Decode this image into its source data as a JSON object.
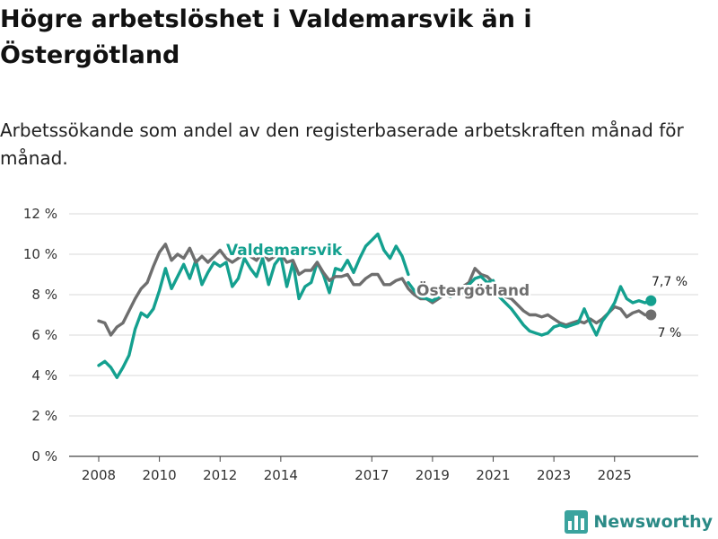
{
  "title": "Högre arbetslöshet i Valdemarsvik än i Östergötland",
  "subtitle": "Arbetssökande som andel av den registerbaserade arbetskraften månad för månad.",
  "brand": {
    "name": "Newsworthy",
    "color": "#2a8a86",
    "icon": "bar-chart-logo-icon"
  },
  "chart_data": {
    "type": "line",
    "title": "Högre arbetslöshet i Valdemarsvik än i Östergötland",
    "xlabel": "",
    "ylabel": "",
    "ylim": [
      0,
      12
    ],
    "xlim": [
      2008,
      2026.9
    ],
    "grid": true,
    "yticks": [
      0,
      2,
      4,
      6,
      8,
      10,
      12
    ],
    "ytick_labels": [
      "0 %",
      "2 %",
      "4 %",
      "6 %",
      "8 %",
      "10 %",
      "12 %"
    ],
    "xticks": [
      2008,
      2010,
      2012,
      2014,
      2017,
      2019,
      2021,
      2023,
      2025
    ],
    "xtick_labels": [
      "2008",
      "2010",
      "2012",
      "2014",
      "2017",
      "2019",
      "2021",
      "2023",
      "2025"
    ],
    "series": [
      {
        "name": "Valdemarsvik",
        "color": "#14a08f",
        "end_label": "7,7 %",
        "points": [
          [
            2008.0,
            4.5
          ],
          [
            2008.2,
            4.7
          ],
          [
            2008.4,
            4.4
          ],
          [
            2008.6,
            3.9
          ],
          [
            2008.8,
            4.4
          ],
          [
            2009.0,
            5.0
          ],
          [
            2009.2,
            6.3
          ],
          [
            2009.4,
            7.1
          ],
          [
            2009.6,
            6.9
          ],
          [
            2009.8,
            7.3
          ],
          [
            2010.0,
            8.2
          ],
          [
            2010.2,
            9.3
          ],
          [
            2010.4,
            8.3
          ],
          [
            2010.6,
            8.9
          ],
          [
            2010.8,
            9.5
          ],
          [
            2011.0,
            8.8
          ],
          [
            2011.2,
            9.7
          ],
          [
            2011.4,
            8.5
          ],
          [
            2011.6,
            9.1
          ],
          [
            2011.8,
            9.6
          ],
          [
            2012.0,
            9.4
          ],
          [
            2012.2,
            9.6
          ],
          [
            2012.4,
            8.4
          ],
          [
            2012.6,
            8.8
          ],
          [
            2012.8,
            9.8
          ],
          [
            2013.0,
            9.3
          ],
          [
            2013.2,
            8.9
          ],
          [
            2013.4,
            9.8
          ],
          [
            2013.6,
            8.5
          ],
          [
            2013.8,
            9.5
          ],
          [
            2014.0,
            9.9
          ],
          [
            2014.2,
            8.4
          ],
          [
            2014.4,
            9.6
          ],
          [
            2014.6,
            7.8
          ],
          [
            2014.8,
            8.4
          ],
          [
            2015.0,
            8.6
          ],
          [
            2015.2,
            9.6
          ],
          [
            2015.4,
            9.0
          ],
          [
            2015.6,
            8.1
          ],
          [
            2015.8,
            9.3
          ],
          [
            2016.0,
            9.2
          ],
          [
            2016.2,
            9.7
          ],
          [
            2016.4,
            9.1
          ],
          [
            2016.6,
            9.8
          ],
          [
            2016.8,
            10.4
          ],
          [
            2017.0,
            10.7
          ],
          [
            2017.2,
            11.0
          ],
          [
            2017.4,
            10.2
          ],
          [
            2017.6,
            9.8
          ],
          [
            2017.8,
            10.4
          ],
          [
            2018.0,
            9.9
          ],
          [
            2018.2,
            9.0
          ]
        ]
      },
      {
        "name": "Östergötland",
        "color": "#6e6e6e",
        "end_label": "7 %",
        "points": [
          [
            2008.0,
            6.7
          ],
          [
            2008.2,
            6.6
          ],
          [
            2008.4,
            6.0
          ],
          [
            2008.6,
            6.4
          ],
          [
            2008.8,
            6.6
          ],
          [
            2009.0,
            7.2
          ],
          [
            2009.2,
            7.8
          ],
          [
            2009.4,
            8.3
          ],
          [
            2009.6,
            8.6
          ],
          [
            2009.8,
            9.4
          ],
          [
            2010.0,
            10.1
          ],
          [
            2010.2,
            10.5
          ],
          [
            2010.4,
            9.7
          ],
          [
            2010.6,
            10.0
          ],
          [
            2010.8,
            9.8
          ],
          [
            2011.0,
            10.3
          ],
          [
            2011.2,
            9.6
          ],
          [
            2011.4,
            9.9
          ],
          [
            2011.6,
            9.6
          ],
          [
            2011.8,
            9.9
          ],
          [
            2012.0,
            10.2
          ],
          [
            2012.2,
            9.8
          ],
          [
            2012.4,
            9.6
          ],
          [
            2012.6,
            9.8
          ],
          [
            2012.8,
            10.0
          ],
          [
            2013.0,
            9.9
          ],
          [
            2013.2,
            9.7
          ],
          [
            2013.4,
            10.1
          ],
          [
            2013.6,
            9.7
          ],
          [
            2013.8,
            9.9
          ],
          [
            2014.0,
            10.0
          ],
          [
            2014.2,
            9.6
          ],
          [
            2014.4,
            9.7
          ],
          [
            2014.6,
            9.0
          ],
          [
            2014.8,
            9.2
          ],
          [
            2015.0,
            9.2
          ],
          [
            2015.2,
            9.6
          ],
          [
            2015.4,
            9.1
          ],
          [
            2015.6,
            8.7
          ],
          [
            2015.8,
            8.9
          ],
          [
            2016.0,
            8.9
          ],
          [
            2016.2,
            9.0
          ],
          [
            2016.4,
            8.5
          ],
          [
            2016.6,
            8.5
          ],
          [
            2016.8,
            8.8
          ],
          [
            2017.0,
            9.0
          ],
          [
            2017.2,
            9.0
          ],
          [
            2017.4,
            8.5
          ],
          [
            2017.6,
            8.5
          ],
          [
            2017.8,
            8.7
          ],
          [
            2018.0,
            8.8
          ],
          [
            2018.2,
            8.3
          ],
          [
            2018.4,
            8.0
          ],
          [
            2018.6,
            7.8
          ],
          [
            2018.8,
            7.8
          ],
          [
            2019.0,
            7.6
          ],
          [
            2019.2,
            7.8
          ],
          [
            2019.4,
            8.0
          ],
          [
            2019.6,
            7.9
          ],
          [
            2019.8,
            8.2
          ],
          [
            2020.0,
            8.4
          ],
          [
            2020.2,
            8.6
          ],
          [
            2020.4,
            9.3
          ],
          [
            2020.6,
            9.0
          ],
          [
            2020.8,
            8.9
          ],
          [
            2021.0,
            8.6
          ],
          [
            2021.2,
            8.2
          ],
          [
            2021.4,
            7.9
          ],
          [
            2021.6,
            7.8
          ],
          [
            2021.8,
            7.5
          ],
          [
            2022.0,
            7.2
          ],
          [
            2022.2,
            7.0
          ],
          [
            2022.4,
            7.0
          ],
          [
            2022.6,
            6.9
          ],
          [
            2022.8,
            7.0
          ],
          [
            2023.0,
            6.8
          ],
          [
            2023.2,
            6.6
          ],
          [
            2023.4,
            6.5
          ],
          [
            2023.6,
            6.6
          ],
          [
            2023.8,
            6.7
          ],
          [
            2024.0,
            6.6
          ],
          [
            2024.2,
            6.8
          ],
          [
            2024.4,
            6.6
          ],
          [
            2024.6,
            6.8
          ],
          [
            2024.8,
            7.1
          ],
          [
            2025.0,
            7.4
          ],
          [
            2025.2,
            7.3
          ],
          [
            2025.4,
            6.9
          ],
          [
            2025.6,
            7.1
          ],
          [
            2025.8,
            7.2
          ],
          [
            2026.0,
            7.0
          ],
          [
            2026.2,
            7.0
          ]
        ]
      },
      {
        "name": "Valdemarsvik",
        "color": "#14a08f",
        "points": [
          [
            2018.2,
            8.6
          ],
          [
            2018.4,
            8.2
          ],
          [
            2018.6,
            7.9
          ],
          [
            2018.8,
            7.8
          ],
          [
            2019.0,
            7.7
          ],
          [
            2019.2,
            7.9
          ],
          [
            2019.4,
            8.1
          ],
          [
            2019.6,
            7.9
          ],
          [
            2019.8,
            8.3
          ],
          [
            2020.0,
            8.1
          ],
          [
            2020.2,
            8.5
          ],
          [
            2020.4,
            8.8
          ],
          [
            2020.6,
            8.9
          ],
          [
            2020.8,
            8.6
          ],
          [
            2021.0,
            8.7
          ],
          [
            2021.2,
            7.9
          ],
          [
            2021.4,
            7.6
          ],
          [
            2021.6,
            7.3
          ],
          [
            2021.8,
            6.9
          ],
          [
            2022.0,
            6.5
          ],
          [
            2022.2,
            6.2
          ],
          [
            2022.4,
            6.1
          ],
          [
            2022.6,
            6.0
          ],
          [
            2022.8,
            6.1
          ],
          [
            2023.0,
            6.4
          ],
          [
            2023.2,
            6.5
          ],
          [
            2023.4,
            6.4
          ],
          [
            2023.6,
            6.5
          ],
          [
            2023.8,
            6.6
          ],
          [
            2024.0,
            7.3
          ],
          [
            2024.2,
            6.6
          ],
          [
            2024.4,
            6.0
          ],
          [
            2024.6,
            6.7
          ],
          [
            2024.8,
            7.1
          ],
          [
            2025.0,
            7.6
          ],
          [
            2025.2,
            8.4
          ],
          [
            2025.4,
            7.8
          ],
          [
            2025.6,
            7.6
          ],
          [
            2025.8,
            7.7
          ],
          [
            2026.0,
            7.6
          ],
          [
            2026.2,
            7.7
          ]
        ]
      }
    ],
    "annotations": [
      {
        "text": "Valdemarsvik",
        "series": "Valdemarsvik"
      },
      {
        "text": "Östergötland",
        "series": "Östergötland"
      }
    ]
  }
}
